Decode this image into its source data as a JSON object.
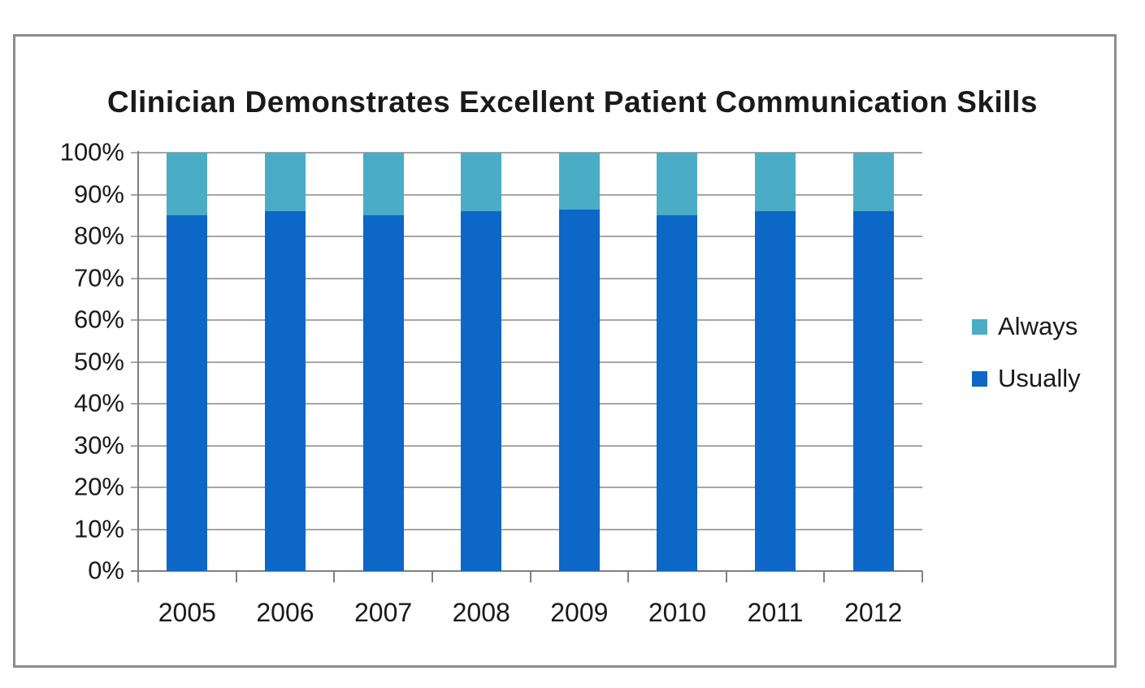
{
  "title": "Clinician Demonstrates Excellent Patient Communication Skills",
  "colors": {
    "usually_blue": "#0C67C6",
    "always_teal": "#4BACC6",
    "gridline": "#A6A6A6",
    "axis": "#808080",
    "frame_border": "#8C8C8C",
    "text": "#1A1A1A",
    "background": "#FFFFFF"
  },
  "chart_data": {
    "type": "bar",
    "stacked": true,
    "title": "Clinician Demonstrates Excellent Patient Communication Skills",
    "categories": [
      "2005",
      "2006",
      "2007",
      "2008",
      "2009",
      "2010",
      "2011",
      "2012"
    ],
    "series": [
      {
        "name": "Usually",
        "color": "#0C67C6",
        "values": [
          85,
          86,
          85,
          86,
          86.5,
          85,
          86,
          86
        ]
      },
      {
        "name": "Always",
        "color": "#4BACC6",
        "values": [
          15,
          14,
          15,
          14,
          13.5,
          15,
          14,
          14
        ]
      }
    ],
    "xlabel": "",
    "ylabel": "",
    "ylim": [
      0,
      100
    ],
    "ytick_step": 10,
    "ytick_labels": [
      "0%",
      "10%",
      "20%",
      "30%",
      "40%",
      "50%",
      "60%",
      "70%",
      "80%",
      "90%",
      "100%"
    ],
    "grid": true,
    "legend": {
      "position": "right",
      "entries": [
        "Always",
        "Usually"
      ]
    }
  }
}
